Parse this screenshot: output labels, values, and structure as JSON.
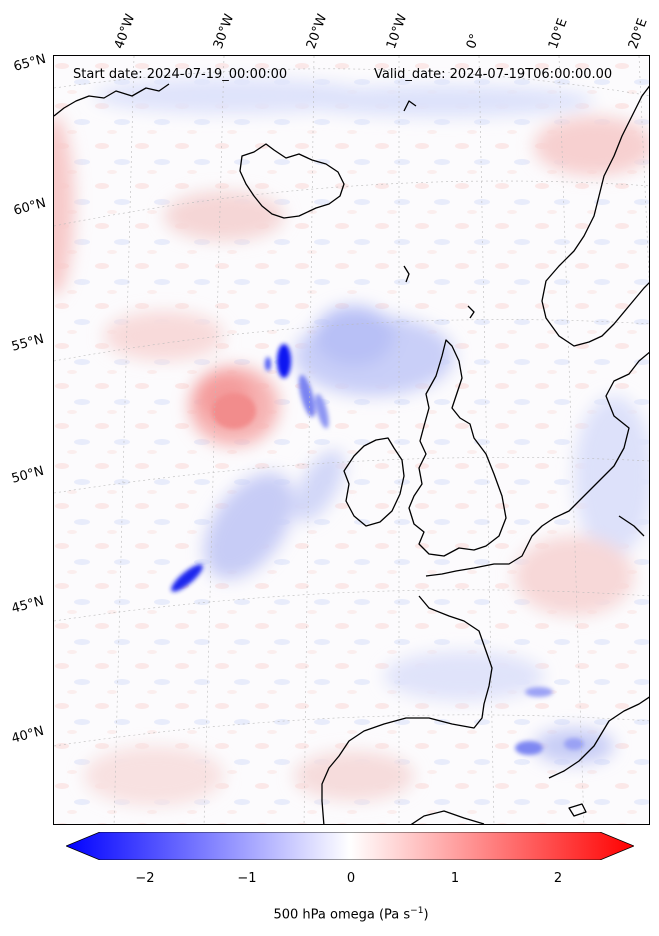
{
  "header": {
    "start_date": "Start date: 2024-07-19_00:00:00",
    "valid_date": "Valid_date: 2024-07-19T06:00:00.00"
  },
  "map": {
    "lon_labels": [
      "40°W",
      "30°W",
      "20°W",
      "10°W",
      "0°",
      "10°E",
      "20°E"
    ],
    "lat_labels": [
      "65°N",
      "60°N",
      "55°N",
      "50°N",
      "45°N",
      "40°N"
    ],
    "coast_color": "#000000",
    "gridline_color": "#bbbbbb"
  },
  "colorbar": {
    "label": "500 hPa omega (Pa s",
    "label_exp": "−1",
    "label_end": ")",
    "ticks": [
      "−2",
      "−1",
      "0",
      "1",
      "2"
    ],
    "min_color": "#0000ff",
    "mid_color": "#ffffff",
    "max_color": "#ff0000",
    "range": [
      -2.5,
      2.5
    ],
    "colormap": "bwr"
  }
}
